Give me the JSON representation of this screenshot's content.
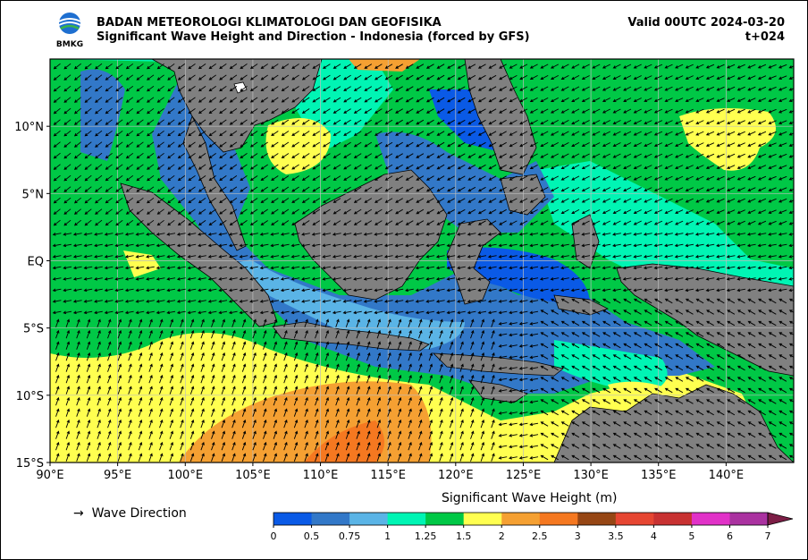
{
  "header": {
    "agency": "BADAN METEOROLOGI KLIMATOLOGI DAN GEOFISIKA",
    "product": "Significant Wave Height and Direction - Indonesia (forced by GFS)",
    "valid": "Valid 00UTC 2024-03-20",
    "lead": "t+024",
    "logo_text": "BMKG"
  },
  "map": {
    "lon_range": [
      90,
      145
    ],
    "lat_range": [
      -15,
      15
    ],
    "x_ticks": [
      "90°E",
      "95°E",
      "100°E",
      "105°E",
      "110°E",
      "115°E",
      "120°E",
      "125°E",
      "130°E",
      "135°E",
      "140°E"
    ],
    "y_ticks": [
      "10°N",
      "5°N",
      "EQ",
      "5°S",
      "10°S",
      "15°S"
    ],
    "land_color": "#808080"
  },
  "legend": {
    "arrow_glyph": "→",
    "arrow_label": "Wave Direction"
  },
  "colorbar": {
    "title": "Significant Wave Height (m)",
    "levels": [
      "0",
      "0.5",
      "0.75",
      "1",
      "1.25",
      "1.5",
      "2",
      "2.5",
      "3",
      "3.5",
      "4",
      "5",
      "6",
      "7"
    ],
    "colors": [
      "#0a5ae6",
      "#3278c8",
      "#5ab4e6",
      "#00f5b4",
      "#00c846",
      "#ffff50",
      "#f5a032",
      "#f57820",
      "#964614",
      "#e64632",
      "#c83232",
      "#e132c8",
      "#aa32a0",
      "#7d1e46"
    ]
  }
}
